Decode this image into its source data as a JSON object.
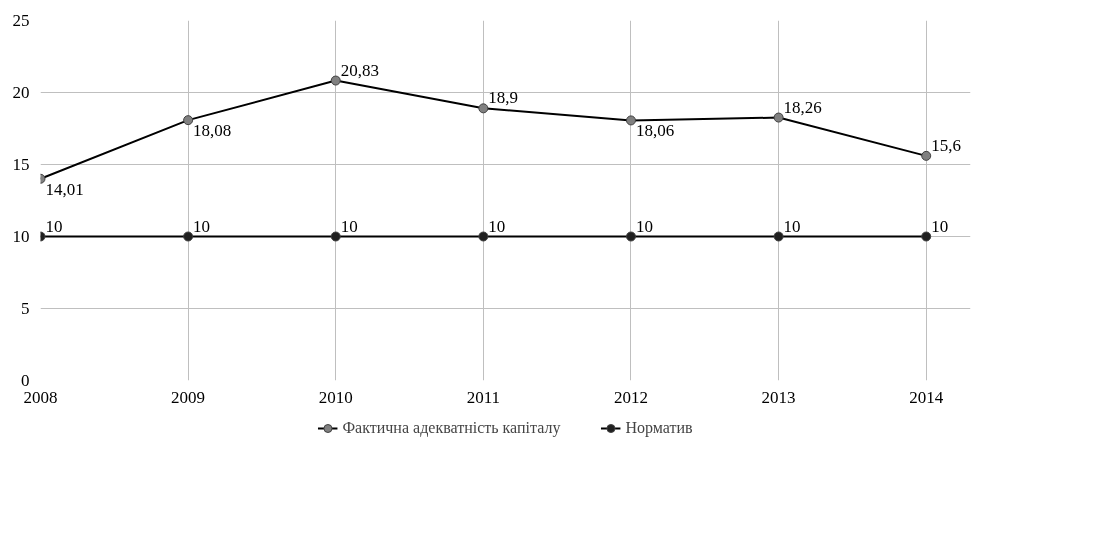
{
  "chart_data": {
    "type": "line",
    "categories": [
      "2008",
      "2009",
      "2010",
      "2011",
      "2012",
      "2013",
      "2014"
    ],
    "series": [
      {
        "name": "Фактична адекватність капіталу",
        "color": "#808080",
        "values": [
          14.01,
          18.08,
          20.83,
          18.9,
          18.06,
          18.26,
          15.6
        ],
        "value_labels": [
          "14,01",
          "18,08",
          "20,83",
          "18,9",
          "18,06",
          "18,26",
          "15,6"
        ]
      },
      {
        "name": "Норматив",
        "color": "#202020",
        "values": [
          10,
          10,
          10,
          10,
          10,
          10,
          10
        ],
        "value_labels": [
          "10",
          "10",
          "10",
          "10",
          "10",
          "10",
          "10"
        ]
      }
    ],
    "ylim": [
      0,
      25
    ],
    "yticks": [
      0,
      5,
      10,
      15,
      20,
      25
    ],
    "grid": true,
    "legend": "bottom",
    "marker": "circle",
    "line_style": "solid"
  }
}
